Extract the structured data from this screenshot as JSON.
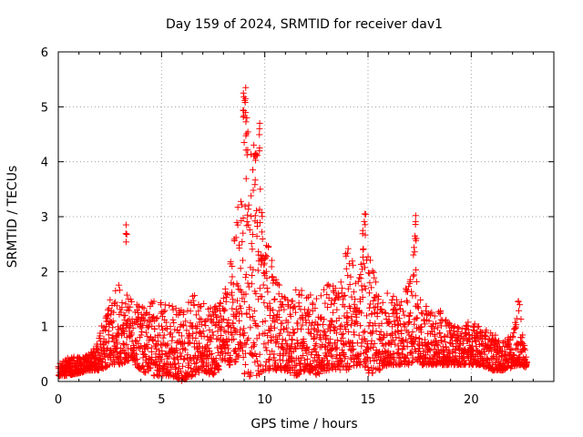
{
  "chart_data": {
    "type": "scatter",
    "title": "Day 159 of 2024, SRMTID for receiver dav1",
    "xlabel": "GPS time / hours",
    "ylabel": "SRMTID / TECUs",
    "xlim": [
      0,
      24
    ],
    "ylim": [
      0,
      6
    ],
    "x_ticks": [
      "0",
      "5",
      "10",
      "15",
      "20"
    ],
    "y_ticks": [
      "0",
      "1",
      "2",
      "3",
      "4",
      "5",
      "6"
    ],
    "x_tick_values": [
      0,
      5,
      10,
      15,
      20
    ],
    "y_tick_values": [
      0,
      1,
      2,
      3,
      4,
      5,
      6
    ],
    "grid": true,
    "marker": "+",
    "marker_color": "#ff0000",
    "series": [
      {
        "name": "SRMTID",
        "envelope_x": [
          0,
          0.5,
          1,
          1.5,
          2,
          2.5,
          3,
          3.5,
          4,
          4.5,
          5,
          5.5,
          6,
          6.5,
          7,
          7.5,
          8,
          8.5,
          8.8,
          9,
          9.3,
          9.6,
          10,
          10.5,
          11,
          11.5,
          12,
          12.5,
          13,
          13.5,
          14,
          14.5,
          14.8,
          15,
          15.5,
          16,
          16.5,
          17,
          17.3,
          17.5,
          18,
          18.5,
          19,
          19.5,
          20,
          20.5,
          21,
          21.5,
          22,
          22.3,
          22.7
        ],
        "envelope_upper": [
          0.3,
          0.45,
          0.45,
          0.5,
          0.9,
          1.5,
          1.8,
          1.5,
          1.35,
          1.5,
          1.45,
          1.4,
          1.3,
          1.6,
          1.5,
          1.5,
          1.5,
          2.5,
          3.7,
          5.3,
          4.1,
          4.5,
          2.9,
          1.9,
          1.7,
          1.7,
          1.75,
          1.75,
          1.8,
          1.7,
          2.5,
          1.9,
          3.0,
          2.5,
          1.6,
          1.7,
          1.5,
          1.8,
          3.0,
          1.6,
          1.3,
          1.3,
          1.1,
          1.05,
          1.1,
          1.05,
          0.9,
          0.75,
          0.85,
          1.55,
          0.4
        ],
        "envelope_lower": [
          0.1,
          0.1,
          0.15,
          0.2,
          0.2,
          0.3,
          0.3,
          0.4,
          0.2,
          0.1,
          0.1,
          0.1,
          0.0,
          0.1,
          0.2,
          0.1,
          0.3,
          0.3,
          0.5,
          0.0,
          0.1,
          0.1,
          0.2,
          0.2,
          0.2,
          0.1,
          0.2,
          0.1,
          0.2,
          0.2,
          0.2,
          0.3,
          0.3,
          0.1,
          0.2,
          0.3,
          0.3,
          0.3,
          0.4,
          0.3,
          0.3,
          0.3,
          0.3,
          0.3,
          0.3,
          0.3,
          0.2,
          0.2,
          0.25,
          0.3,
          0.25
        ],
        "spikes": [
          {
            "x": 3.3,
            "y": 2.85
          },
          {
            "x": 9.05,
            "y": 5.35
          },
          {
            "x": 8.95,
            "y": 5.25
          },
          {
            "x": 9.1,
            "y": 4.8
          },
          {
            "x": 9.75,
            "y": 4.7
          },
          {
            "x": 9.55,
            "y": 4.15
          },
          {
            "x": 14.85,
            "y": 3.05
          },
          {
            "x": 17.3,
            "y": 3.02
          }
        ]
      }
    ]
  }
}
